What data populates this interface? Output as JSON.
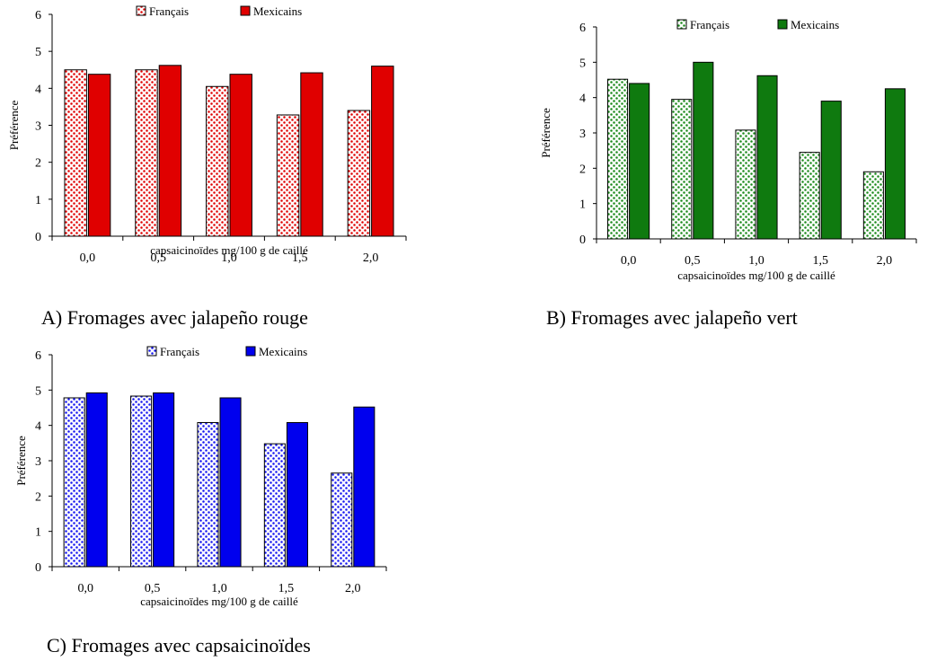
{
  "chart_data": [
    {
      "type": "bar",
      "caption": "A) Fromages avec jalapeño rouge",
      "categories": [
        "0,0",
        "0,5",
        "1,0",
        "1,5",
        "2,0"
      ],
      "xlabel": "capsaicinoïdes mg/100 g de caillé",
      "ylabel": "Préférence",
      "ylim": [
        0,
        6
      ],
      "yticks": [
        "0",
        "1",
        "2",
        "3",
        "4",
        "5",
        "6"
      ],
      "legend_position": "top",
      "grid": false,
      "colors": {
        "dark": "#e00000",
        "light": "#ffffff",
        "dot": "#e00000"
      },
      "series": [
        {
          "name": "Français",
          "values": [
            4.5,
            4.5,
            4.05,
            3.28,
            3.4
          ]
        },
        {
          "name": "Mexicains",
          "values": [
            4.38,
            4.62,
            4.38,
            4.42,
            4.6
          ]
        }
      ]
    },
    {
      "type": "bar",
      "caption": "B) Fromages avec jalapeño vert",
      "categories": [
        "0,0",
        "0,5",
        "1,0",
        "1,5",
        "2,0"
      ],
      "xlabel": "capsaicinoïdes mg/100 g de caillé",
      "ylabel": "Préférence",
      "ylim": [
        0,
        6
      ],
      "yticks": [
        "0",
        "1",
        "2",
        "3",
        "4",
        "5",
        "6"
      ],
      "legend_position": "top",
      "grid": false,
      "colors": {
        "dark": "#0f7a0f",
        "light": "#ffffff",
        "dot": "#1a8a1a"
      },
      "series": [
        {
          "name": "Français",
          "values": [
            4.52,
            3.95,
            3.08,
            2.45,
            1.9
          ]
        },
        {
          "name": "Mexicains",
          "values": [
            4.4,
            5.0,
            4.62,
            3.9,
            4.25
          ]
        }
      ]
    },
    {
      "type": "bar",
      "caption": "C) Fromages avec capsaicinoïdes",
      "categories": [
        "0,0",
        "0,5",
        "1,0",
        "1,5",
        "2,0"
      ],
      "xlabel": "capsaicinoïdes mg/100 g de caillé",
      "ylabel": "Préférence",
      "ylim": [
        0,
        6
      ],
      "yticks": [
        "0",
        "1",
        "2",
        "3",
        "4",
        "5",
        "6"
      ],
      "legend_position": "top",
      "grid": false,
      "colors": {
        "dark": "#0000ee",
        "light": "#ffffff",
        "dot": "#1515f0"
      },
      "series": [
        {
          "name": "Français",
          "values": [
            4.78,
            4.83,
            4.08,
            3.48,
            2.65
          ]
        },
        {
          "name": "Mexicains",
          "values": [
            4.92,
            4.92,
            4.78,
            4.08,
            4.52
          ]
        }
      ]
    }
  ]
}
